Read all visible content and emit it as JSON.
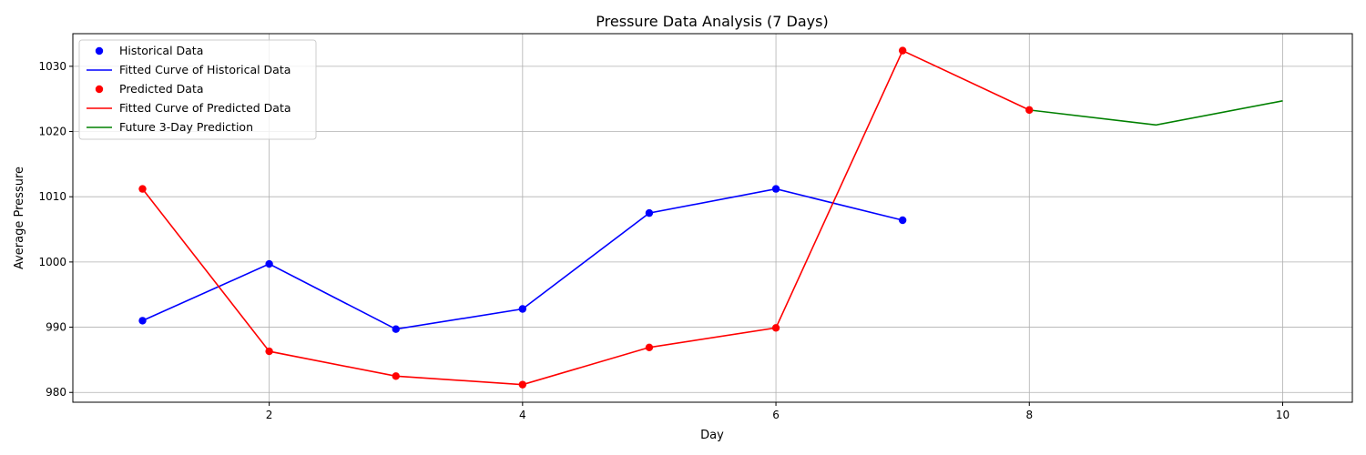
{
  "chart_data": {
    "type": "line",
    "title": "Pressure Data Analysis (7 Days)",
    "xlabel": "Day",
    "ylabel": "Average Pressure",
    "xlim": [
      0.45,
      10.55
    ],
    "ylim": [
      978.5,
      1035.0
    ],
    "xticks": [
      2,
      4,
      6,
      8,
      10
    ],
    "yticks": [
      980,
      990,
      1000,
      1010,
      1020,
      1030
    ],
    "grid": true,
    "legend_position": "top-left",
    "series": [
      {
        "name": "Historical Data",
        "kind": "points",
        "color": "#0000ff",
        "x": [
          1,
          2,
          3,
          4,
          5,
          6,
          7
        ],
        "y": [
          991.0,
          999.7,
          989.7,
          992.8,
          1007.5,
          1011.2,
          1006.4
        ]
      },
      {
        "name": "Fitted Curve of Historical Data",
        "kind": "line",
        "color": "#0000ff",
        "x": [
          1,
          2,
          3,
          4,
          5,
          6,
          7
        ],
        "y": [
          991.0,
          999.7,
          989.7,
          992.8,
          1007.5,
          1011.2,
          1006.4
        ]
      },
      {
        "name": "Predicted Data",
        "kind": "points",
        "color": "#ff0000",
        "x": [
          1,
          2,
          3,
          4,
          5,
          6,
          7,
          8
        ],
        "y": [
          1011.2,
          986.3,
          982.5,
          981.2,
          986.9,
          989.9,
          1032.4,
          1023.3
        ]
      },
      {
        "name": "Fitted Curve of Predicted Data",
        "kind": "line",
        "color": "#ff0000",
        "x": [
          1,
          2,
          3,
          4,
          5,
          6,
          7,
          8
        ],
        "y": [
          1011.2,
          986.3,
          982.5,
          981.2,
          986.9,
          989.9,
          1032.4,
          1023.3
        ]
      },
      {
        "name": "Future 3-Day Prediction",
        "kind": "line",
        "color": "#008000",
        "x": [
          8,
          9,
          10
        ],
        "y": [
          1023.3,
          1021.0,
          1024.7
        ]
      }
    ]
  }
}
